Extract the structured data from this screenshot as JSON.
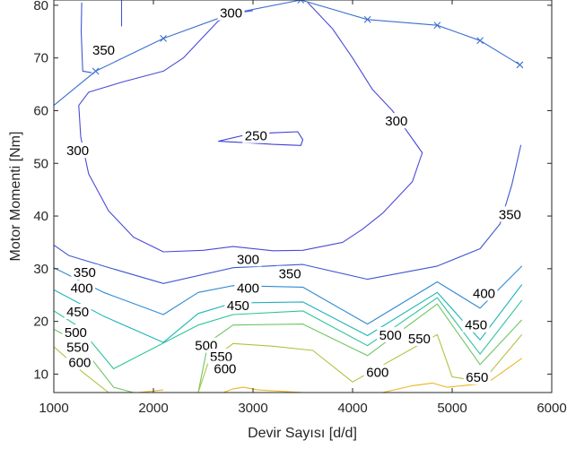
{
  "chart_data": {
    "type": "contour",
    "xlabel": "Devir Sayısı [d/d]",
    "ylabel": "Motor Momenti [Nm]",
    "xlim": [
      1000,
      6000
    ],
    "ylim": [
      6.5,
      81
    ],
    "x_ticks": [
      1000,
      2000,
      3000,
      4000,
      5000,
      6000
    ],
    "y_ticks": [
      10,
      20,
      30,
      40,
      50,
      60,
      70,
      80
    ],
    "grid": false,
    "colors": {
      "boundary": "#3b6fd0",
      "c250": "#3f3fd8",
      "c300": "#4a4ad6",
      "c350": "#3f57d2",
      "c400": "#2f8ad3",
      "c450": "#1fb3b9",
      "c500": "#2ec49a",
      "c550": "#6dc661",
      "c600": "#b2c13f",
      "c650": "#e9b624"
    },
    "max_torque_curve": {
      "x": [
        1000,
        1420,
        2100,
        2780,
        3480,
        4150,
        4850,
        5280,
        5680
      ],
      "y": [
        61,
        67.5,
        73.7,
        78.4,
        81,
        77.3,
        76.2,
        73.3,
        68.7
      ],
      "marker_x": [
        1420,
        2100,
        2780,
        3480,
        4150,
        4850,
        5280,
        5680
      ],
      "marker": "x"
    },
    "contours": [
      {
        "level": 250,
        "color_key": "c250",
        "x": [
          2650,
          2950,
          3200,
          3450,
          3500,
          3480,
          3200,
          2950,
          2650
        ],
        "y": [
          54.2,
          55.5,
          55.8,
          56,
          54.5,
          53.4,
          53.6,
          53.9,
          54.2
        ]
      },
      {
        "level": 300,
        "color_key": "c300",
        "x": [
          2550,
          2650,
          2780,
          2900,
          3000
        ],
        "y": [
          75,
          77,
          78.2,
          78.7,
          79
        ]
      },
      {
        "level": 300,
        "color_key": "c300",
        "x": [
          3550,
          3800,
          4000,
          4200,
          4400,
          4700,
          4600,
          4300,
          4100,
          3900,
          3500,
          3200,
          2800,
          2500,
          2100,
          1800,
          1550,
          1350,
          1270,
          1250,
          1350,
          1700,
          2100,
          2300,
          2550
        ],
        "y": [
          80.5,
          75.5,
          70,
          64,
          60,
          52,
          46.5,
          40.5,
          37.5,
          35,
          33.5,
          33.4,
          34.2,
          33.5,
          33.2,
          36,
          41,
          48,
          55,
          61,
          63.5,
          65.5,
          67.5,
          70,
          75
        ]
      },
      {
        "level": 350,
        "color_key": "c350",
        "x": [
          1280,
          1275,
          1290,
          1380
        ],
        "y": [
          80.5,
          75,
          67.5,
          67.2
        ]
      },
      {
        "level": 350,
        "color_key": "c350",
        "x": [
          1680,
          1680
        ],
        "y": [
          81,
          76
        ]
      },
      {
        "level": 350,
        "color_key": "c350",
        "x": [
          1000,
          1150,
          1500,
          2100,
          2800,
          3500,
          4150,
          4850,
          5280,
          5480,
          5600,
          5660,
          5690
        ],
        "y": [
          34.5,
          32.5,
          30.5,
          27.2,
          30.2,
          30.8,
          28,
          30.5,
          33.8,
          38.5,
          46,
          51,
          53.5
        ]
      },
      {
        "level": 400,
        "color_key": "c400",
        "x": [
          1000,
          1500,
          2100,
          2450,
          2800,
          3500,
          4150,
          4850,
          5280,
          5700
        ],
        "y": [
          30.2,
          25.5,
          21.3,
          25.5,
          26.8,
          26.5,
          19.5,
          27.5,
          22.5,
          30.5
        ]
      },
      {
        "level": 450,
        "color_key": "c450",
        "x": [
          1000,
          1500,
          2100,
          2450,
          2800,
          3500,
          4150,
          4850,
          5280,
          5700
        ],
        "y": [
          26,
          21,
          16,
          21.5,
          23.5,
          23.7,
          17.3,
          25.5,
          16.5,
          27
        ]
      },
      {
        "level": 500,
        "color_key": "c500",
        "x": [
          1000,
          1250,
          1600,
          2450,
          2800,
          3500,
          4150,
          4850,
          5280,
          5700
        ],
        "y": [
          22,
          19,
          11,
          19.3,
          21.3,
          22,
          15.4,
          24.5,
          13.8,
          24
        ]
      },
      {
        "level": 550,
        "color_key": "c550",
        "x": [
          1000,
          1250,
          1600,
          1800,
          2450,
          2550,
          2800,
          3500,
          4150,
          4850,
          5280,
          5700
        ],
        "y": [
          18.5,
          16,
          7.5,
          6.5,
          6.5,
          16,
          19.3,
          19.5,
          13.5,
          23.3,
          11.8,
          20.3
        ]
      },
      {
        "level": 600,
        "color_key": "c600",
        "x": [
          1000,
          1300,
          1550,
          2450,
          2550,
          2800,
          3200,
          3600,
          4000,
          4850,
          5000,
          5300,
          5700
        ],
        "y": [
          15.2,
          10.2,
          6.5,
          6.5,
          12.2,
          15.8,
          15.3,
          14.5,
          8.5,
          17.5,
          9.5,
          8.5,
          17.5
        ]
      },
      {
        "level": 650,
        "color_key": "c650",
        "x": [
          2700,
          2800,
          2900,
          3050,
          3500,
          3650
        ],
        "y": [
          6.5,
          7.2,
          7.5,
          7,
          6.5,
          6.5
        ]
      },
      {
        "level": 650,
        "color_key": "c650",
        "x": [
          4300,
          4600,
          4800,
          4950,
          5100,
          5350,
          5700
        ],
        "y": [
          6.5,
          7.8,
          8.3,
          7.5,
          7.8,
          8.3,
          13
        ]
      },
      {
        "level": 650,
        "color_key": "c650",
        "x": [
          1850,
          2100
        ],
        "y": [
          6.5,
          7
        ]
      }
    ],
    "contour_labels": [
      {
        "text": "350",
        "x": 1500,
        "y": 71.5
      },
      {
        "text": "300",
        "x": 2780,
        "y": 78.5
      },
      {
        "text": "250",
        "x": 3030,
        "y": 55.2
      },
      {
        "text": "300",
        "x": 4440,
        "y": 58
      },
      {
        "text": "300",
        "x": 1240,
        "y": 52.4
      },
      {
        "text": "350",
        "x": 5580,
        "y": 40.3
      },
      {
        "text": "300",
        "x": 2950,
        "y": 31.8
      },
      {
        "text": "350",
        "x": 1310,
        "y": 29.3
      },
      {
        "text": "350",
        "x": 3370,
        "y": 29
      },
      {
        "text": "400",
        "x": 1280,
        "y": 26.3
      },
      {
        "text": "400",
        "x": 2950,
        "y": 26.3
      },
      {
        "text": "400",
        "x": 5320,
        "y": 25.3
      },
      {
        "text": "450",
        "x": 1240,
        "y": 21.8
      },
      {
        "text": "450",
        "x": 2850,
        "y": 23
      },
      {
        "text": "450",
        "x": 5240,
        "y": 19.3
      },
      {
        "text": "500",
        "x": 1220,
        "y": 17.9
      },
      {
        "text": "500",
        "x": 2530,
        "y": 15.4
      },
      {
        "text": "500",
        "x": 4380,
        "y": 17.4
      },
      {
        "text": "550",
        "x": 1240,
        "y": 15.1
      },
      {
        "text": "550",
        "x": 2680,
        "y": 13.3
      },
      {
        "text": "550",
        "x": 4670,
        "y": 16.7
      },
      {
        "text": "600",
        "x": 1260,
        "y": 12.2
      },
      {
        "text": "600",
        "x": 2720,
        "y": 11
      },
      {
        "text": "600",
        "x": 4250,
        "y": 10.3
      },
      {
        "text": "650",
        "x": 5250,
        "y": 9.4
      }
    ]
  }
}
